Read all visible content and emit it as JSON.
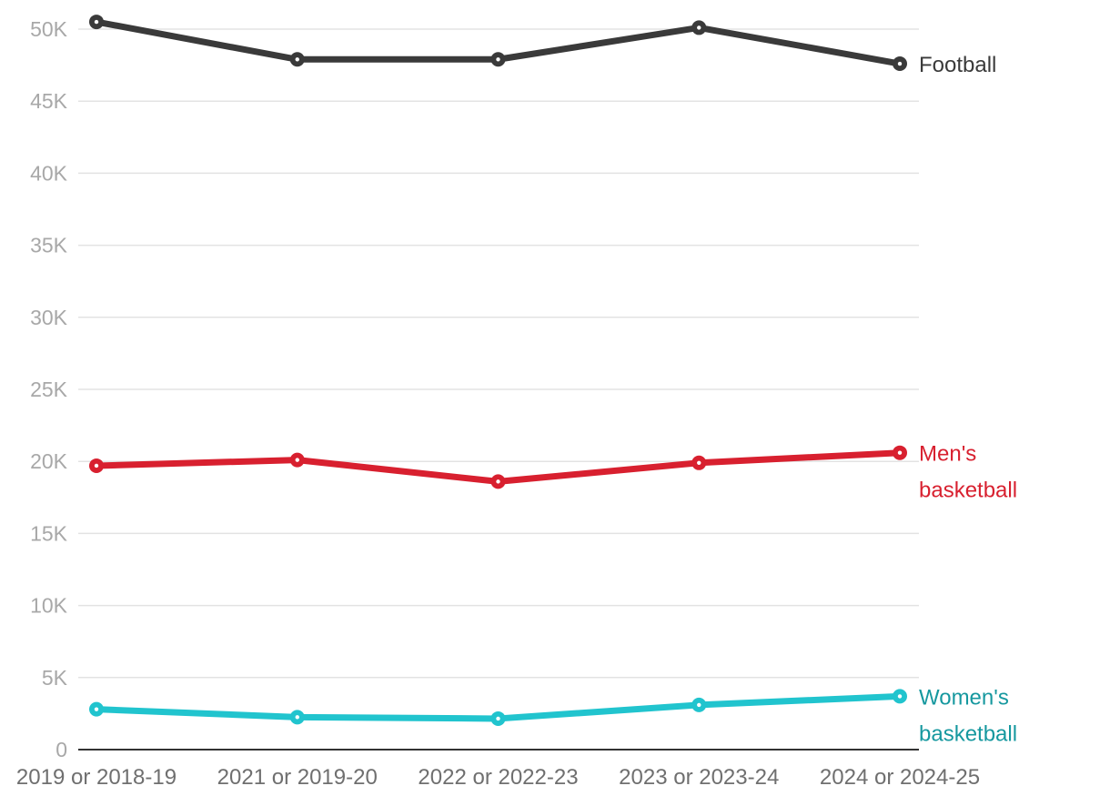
{
  "chart_data": {
    "type": "line",
    "categories": [
      "2019 or 2018-19",
      "2021 or 2019-20",
      "2022 or 2022-23",
      "2023 or 2023-24",
      "2024 or 2024-25"
    ],
    "ylim": [
      0,
      50000
    ],
    "yticks": [
      0,
      5000,
      10000,
      15000,
      20000,
      25000,
      30000,
      35000,
      40000,
      45000,
      50000
    ],
    "ytick_labels": [
      "0",
      "5K",
      "10K",
      "15K",
      "20K",
      "25K",
      "30K",
      "35K",
      "40K",
      "45K",
      "50K"
    ],
    "grid": true,
    "series": [
      {
        "name": "Football",
        "label_lines": [
          "Football"
        ],
        "color": "#3a3a3a",
        "label_color": "#3a3a3a",
        "values": [
          50500,
          47900,
          47900,
          50100,
          47600
        ]
      },
      {
        "name": "Men's basketball",
        "label_lines": [
          "Men's",
          "basketball"
        ],
        "color": "#d8202f",
        "label_color": "#d8202f",
        "values": [
          19700,
          20100,
          18600,
          19900,
          20600
        ]
      },
      {
        "name": "Women's basketball",
        "label_lines": [
          "Women's",
          "basketball"
        ],
        "color": "#21c4ce",
        "label_color": "#16989f",
        "values": [
          2800,
          2250,
          2150,
          3100,
          3700
        ]
      }
    ]
  }
}
